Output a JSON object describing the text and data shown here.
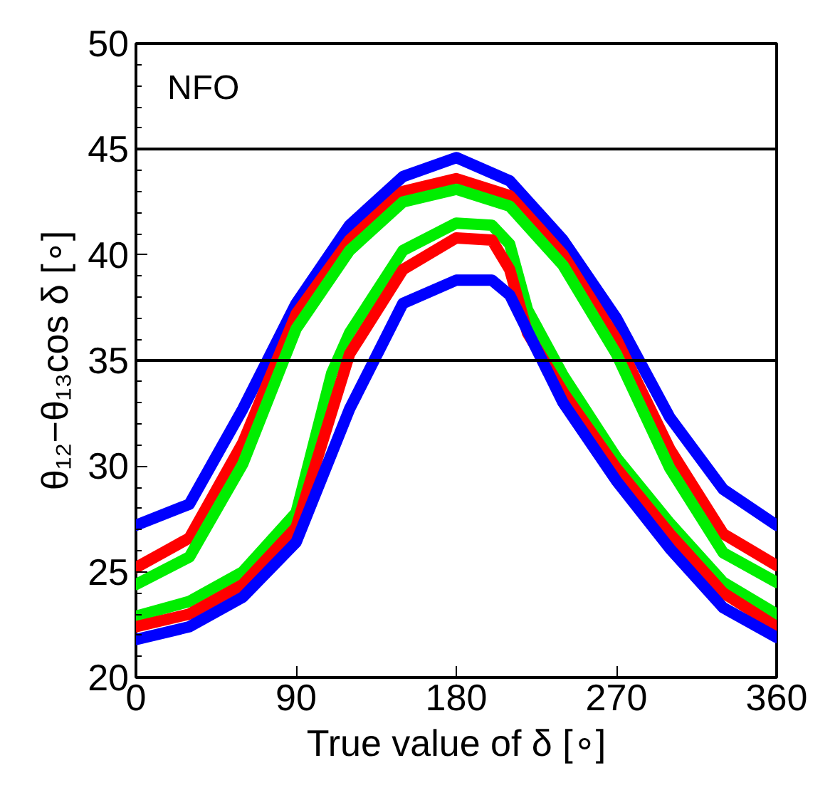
{
  "chart_data": {
    "type": "line",
    "xlabel": "True value of δ [∘]",
    "ylabel": "θ₁₂−θ₁₃cos δ [∘]",
    "annotations": [
      "NFO"
    ],
    "x": [
      0,
      30,
      60,
      90,
      120,
      150,
      180,
      210,
      240,
      270,
      300,
      330,
      360
    ],
    "xlim": [
      0,
      360
    ],
    "xticks": [
      0,
      90,
      180,
      270,
      360
    ],
    "ylim": [
      20,
      50
    ],
    "yticks": [
      20,
      25,
      30,
      35,
      40,
      45,
      50
    ],
    "grid": false,
    "ref_lines": [
      {
        "axis": "y",
        "value": 45,
        "color": "#000000"
      },
      {
        "axis": "y",
        "value": 35,
        "color": "#000000"
      }
    ],
    "series": [
      {
        "color": "#0000ff",
        "values": [
          27.2,
          28.2,
          32.7,
          37.7,
          41.4,
          43.7,
          44.6,
          43.5,
          40.7,
          37.0,
          32.3,
          28.9,
          27.2
        ]
      },
      {
        "color": "#ff0000",
        "values": [
          25.2,
          26.6,
          31.1,
          37.2,
          40.7,
          43.0,
          43.6,
          42.8,
          40.0,
          36.0,
          30.8,
          26.8,
          25.3
        ]
      },
      {
        "color": "#00ee00",
        "values": [
          24.4,
          25.7,
          30.1,
          36.5,
          40.2,
          42.5,
          43.1,
          42.3,
          39.5,
          35.3,
          29.9,
          25.9,
          24.5
        ]
      },
      {
        "color": "#00ee00",
        "x": [
          0,
          30,
          60,
          90,
          110,
          120,
          150,
          180,
          200,
          210,
          220,
          240,
          270,
          300,
          330,
          360
        ],
        "values": [
          22.9,
          23.6,
          25.0,
          27.8,
          34.4,
          36.3,
          40.2,
          41.5,
          41.4,
          40.5,
          37.4,
          34.3,
          30.4,
          27.3,
          24.5,
          23.0
        ]
      },
      {
        "color": "#ff0000",
        "x": [
          0,
          30,
          60,
          90,
          120,
          150,
          180,
          200,
          210,
          220,
          240,
          270,
          300,
          330,
          360
        ],
        "values": [
          22.4,
          23.0,
          24.4,
          27.1,
          35.3,
          39.3,
          40.8,
          40.7,
          39.3,
          36.3,
          33.5,
          29.9,
          26.8,
          24.0,
          22.4
        ]
      },
      {
        "color": "#0000ff",
        "x": [
          0,
          30,
          60,
          90,
          120,
          150,
          180,
          200,
          210,
          240,
          270,
          300,
          330,
          360
        ],
        "values": [
          21.8,
          22.4,
          23.8,
          26.4,
          32.7,
          37.7,
          38.8,
          38.8,
          38.1,
          33.0,
          29.3,
          26.1,
          23.3,
          21.9
        ]
      }
    ]
  }
}
